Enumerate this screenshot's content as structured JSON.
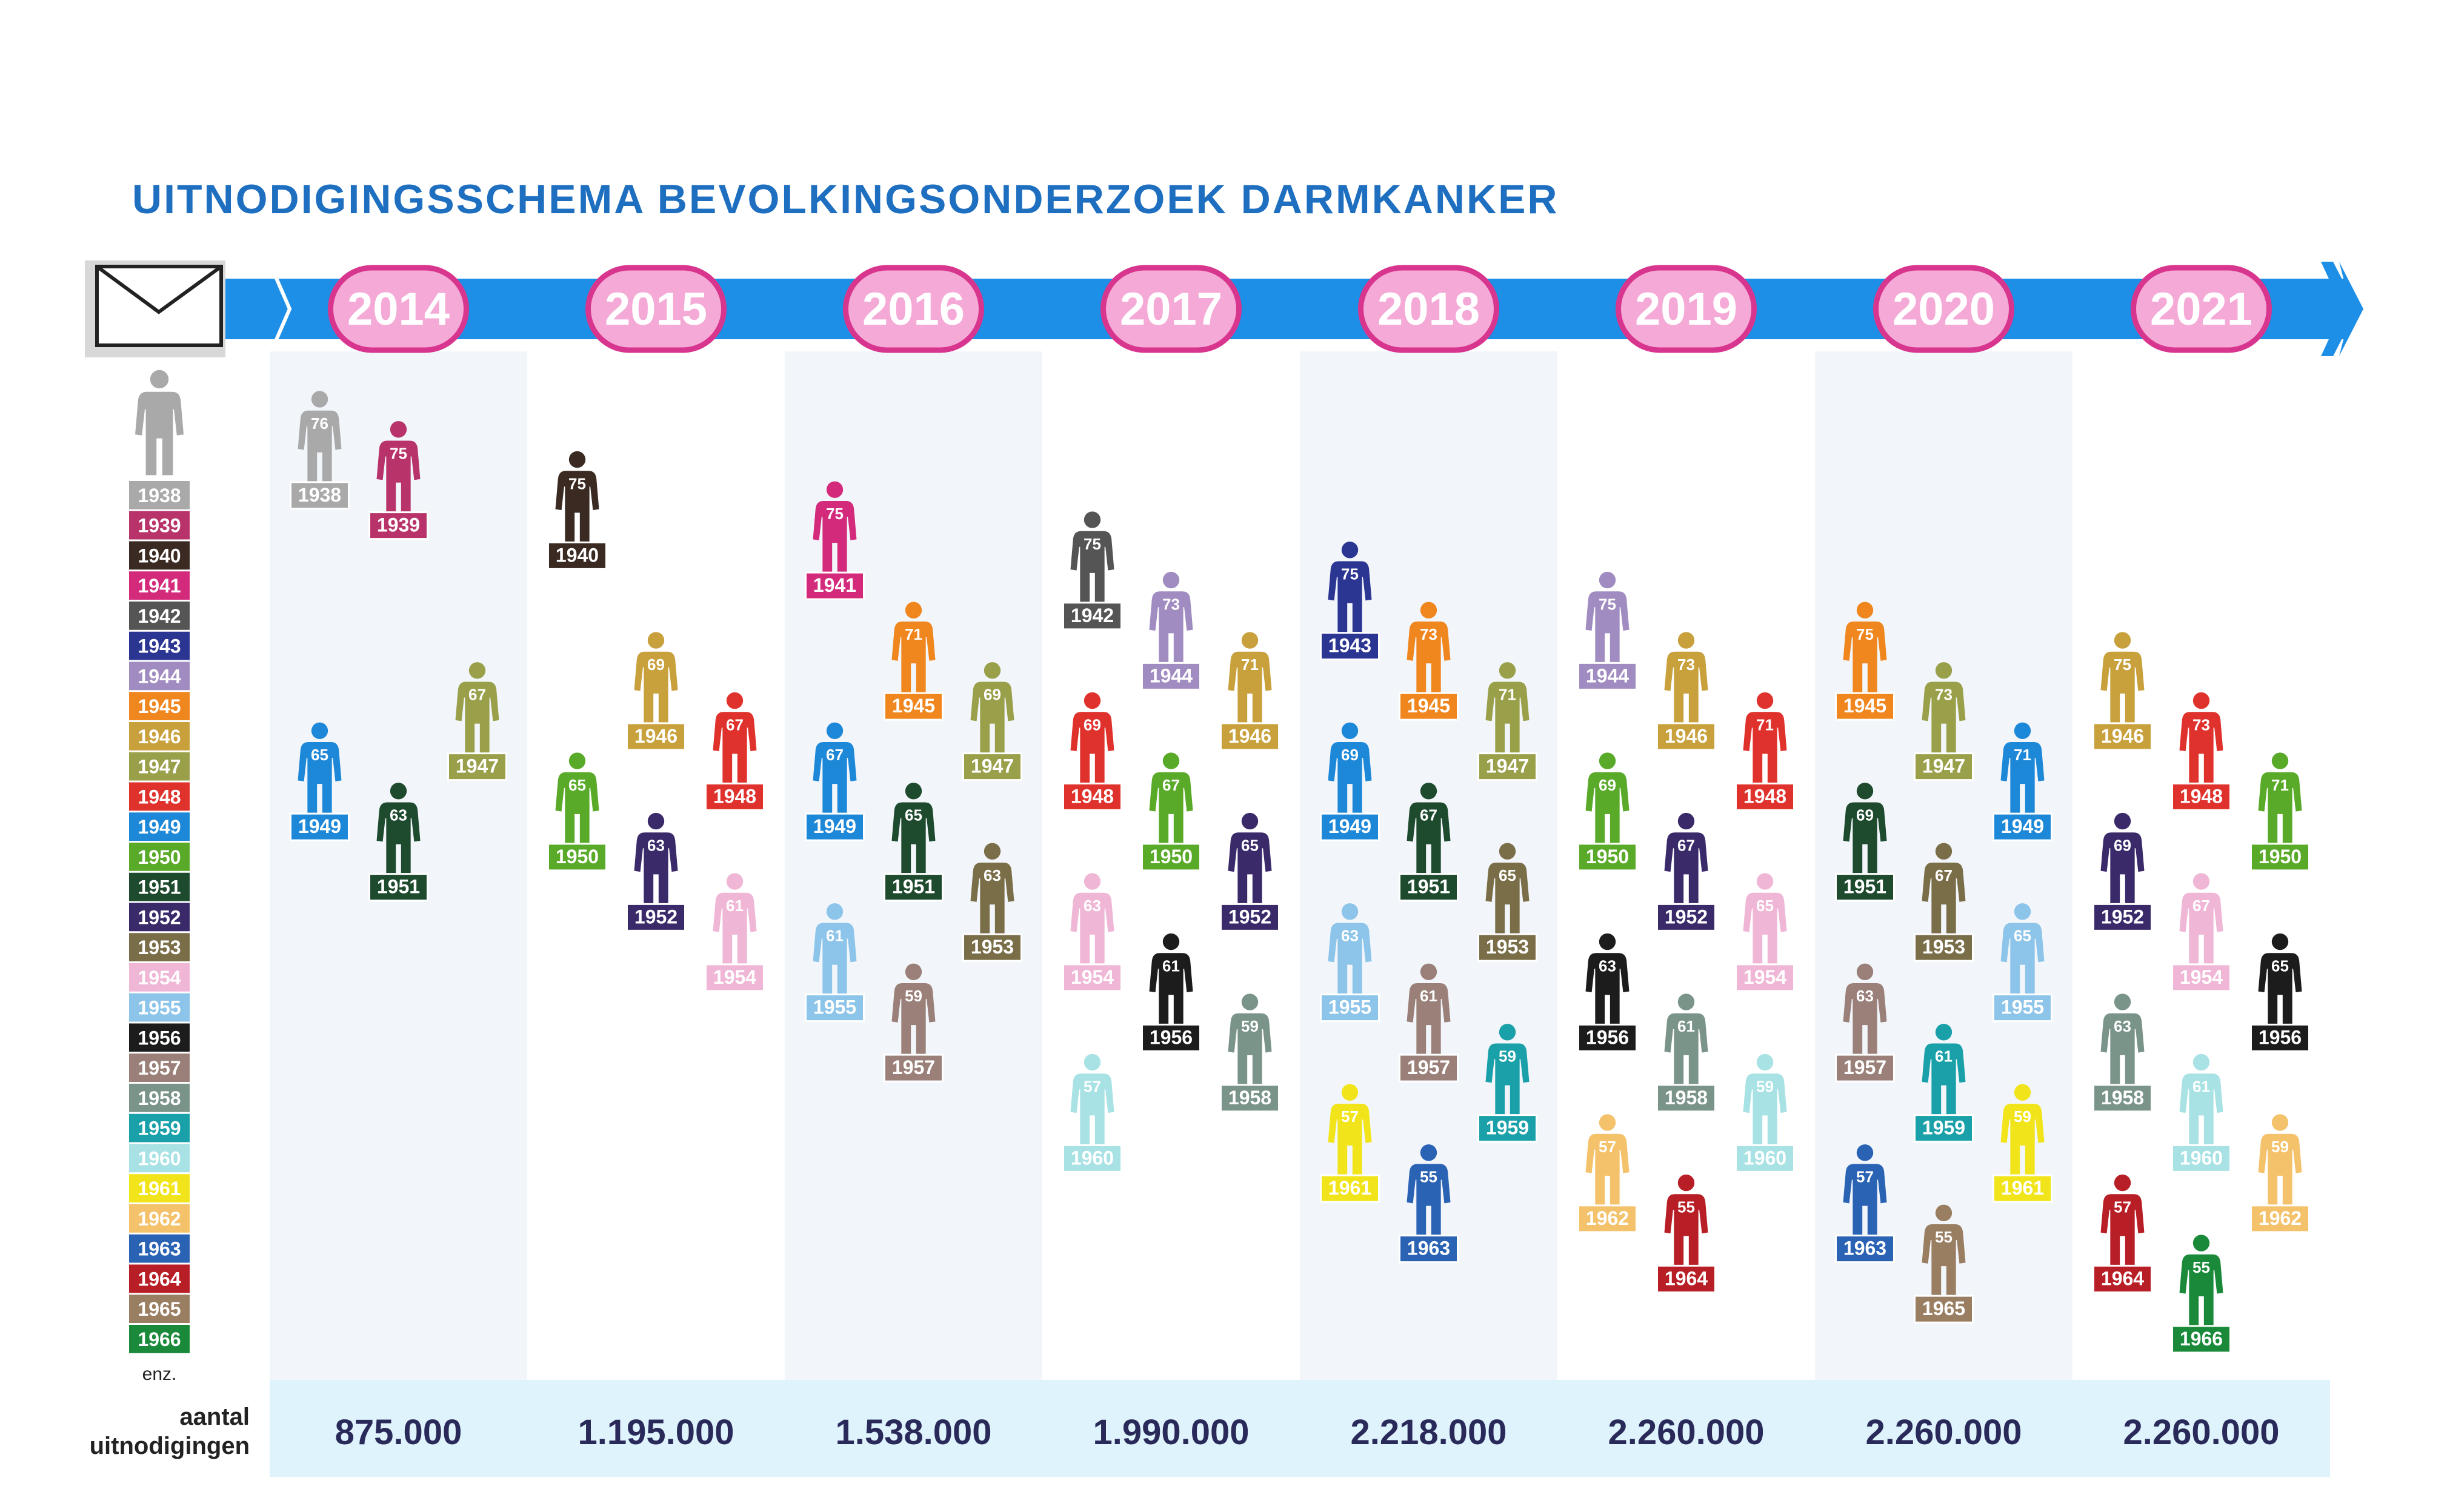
{
  "title": "UITNODIGINGSSCHEMA BEVOLKINGSONDERZOEK DARMKANKER",
  "legend_more": "enz.",
  "totals_label_line1": "aantal",
  "totals_label_line2": "uitnodigingen",
  "colors": {
    "arrow": "#1e8fe6",
    "year_badge_fill": "#f4a9d6",
    "year_badge_border": "#d8358e",
    "column_shade": "#f2f6fb",
    "totals_band": "#def3fb",
    "title": "#1e6fc0"
  },
  "chart_data": {
    "type": "pictogram-schedule",
    "title": "UITNODIGINGSSCHEMA BEVOLKINGSONDERZOEK DARMKANKER",
    "years": [
      "2014",
      "2015",
      "2016",
      "2017",
      "2018",
      "2019",
      "2020",
      "2021"
    ],
    "invitations": [
      "875.000",
      "1.195.000",
      "1.538.000",
      "1.990.000",
      "2.218.000",
      "2.260.000",
      "2.260.000",
      "2.260.000"
    ],
    "birth_years": [
      {
        "year": "1938",
        "color": "#a9a9a9"
      },
      {
        "year": "1939",
        "color": "#b8336a"
      },
      {
        "year": "1940",
        "color": "#3a2a22"
      },
      {
        "year": "1941",
        "color": "#d42a7c"
      },
      {
        "year": "1942",
        "color": "#555555"
      },
      {
        "year": "1943",
        "color": "#2b3592"
      },
      {
        "year": "1944",
        "color": "#a08cc0"
      },
      {
        "year": "1945",
        "color": "#f0861e"
      },
      {
        "year": "1946",
        "color": "#c8a03c"
      },
      {
        "year": "1947",
        "color": "#9aa04a"
      },
      {
        "year": "1948",
        "color": "#e0322c"
      },
      {
        "year": "1949",
        "color": "#1e88d8"
      },
      {
        "year": "1950",
        "color": "#5aaa2a"
      },
      {
        "year": "1951",
        "color": "#1e4a2e"
      },
      {
        "year": "1952",
        "color": "#3a2a6a"
      },
      {
        "year": "1953",
        "color": "#7a6e48"
      },
      {
        "year": "1954",
        "color": "#f0b6d6"
      },
      {
        "year": "1955",
        "color": "#8cc4ea"
      },
      {
        "year": "1956",
        "color": "#1c1c1c"
      },
      {
        "year": "1957",
        "color": "#9a8078"
      },
      {
        "year": "1958",
        "color": "#7a948a"
      },
      {
        "year": "1959",
        "color": "#1aa0a8"
      },
      {
        "year": "1960",
        "color": "#a8e2e4"
      },
      {
        "year": "1961",
        "color": "#f2e41a"
      },
      {
        "year": "1962",
        "color": "#f4c26a"
      },
      {
        "year": "1963",
        "color": "#2a62b4"
      },
      {
        "year": "1964",
        "color": "#b81e26"
      },
      {
        "year": "1965",
        "color": "#9a7e62"
      },
      {
        "year": "1966",
        "color": "#1a8a3a"
      }
    ],
    "invitations_by_year": [
      {
        "year": "2014",
        "people": [
          {
            "birth": "1938",
            "age": "76"
          },
          {
            "birth": "1939",
            "age": "75"
          },
          {
            "birth": "1947",
            "age": "67"
          },
          {
            "birth": "1949",
            "age": "65"
          },
          {
            "birth": "1951",
            "age": "63"
          }
        ]
      },
      {
        "year": "2015",
        "people": [
          {
            "birth": "1940",
            "age": "75"
          },
          {
            "birth": "1946",
            "age": "69"
          },
          {
            "birth": "1948",
            "age": "67"
          },
          {
            "birth": "1950",
            "age": "65"
          },
          {
            "birth": "1952",
            "age": "63"
          },
          {
            "birth": "1954",
            "age": "61"
          }
        ]
      },
      {
        "year": "2016",
        "people": [
          {
            "birth": "1941",
            "age": "75"
          },
          {
            "birth": "1945",
            "age": "71"
          },
          {
            "birth": "1947",
            "age": "69"
          },
          {
            "birth": "1949",
            "age": "67"
          },
          {
            "birth": "1951",
            "age": "65"
          },
          {
            "birth": "1953",
            "age": "63"
          },
          {
            "birth": "1955",
            "age": "61"
          },
          {
            "birth": "1957",
            "age": "59"
          }
        ]
      },
      {
        "year": "2017",
        "people": [
          {
            "birth": "1942",
            "age": "75"
          },
          {
            "birth": "1944",
            "age": "73"
          },
          {
            "birth": "1946",
            "age": "71"
          },
          {
            "birth": "1948",
            "age": "69"
          },
          {
            "birth": "1950",
            "age": "67"
          },
          {
            "birth": "1952",
            "age": "65"
          },
          {
            "birth": "1954",
            "age": "63"
          },
          {
            "birth": "1956",
            "age": "61"
          },
          {
            "birth": "1958",
            "age": "59"
          },
          {
            "birth": "1960",
            "age": "57"
          }
        ]
      },
      {
        "year": "2018",
        "people": [
          {
            "birth": "1943",
            "age": "75"
          },
          {
            "birth": "1945",
            "age": "73"
          },
          {
            "birth": "1947",
            "age": "71"
          },
          {
            "birth": "1949",
            "age": "69"
          },
          {
            "birth": "1951",
            "age": "67"
          },
          {
            "birth": "1953",
            "age": "65"
          },
          {
            "birth": "1955",
            "age": "63"
          },
          {
            "birth": "1957",
            "age": "61"
          },
          {
            "birth": "1959",
            "age": "59"
          },
          {
            "birth": "1961",
            "age": "57"
          },
          {
            "birth": "1963",
            "age": "55"
          }
        ]
      },
      {
        "year": "2019",
        "people": [
          {
            "birth": "1944",
            "age": "75"
          },
          {
            "birth": "1946",
            "age": "73"
          },
          {
            "birth": "1948",
            "age": "71"
          },
          {
            "birth": "1950",
            "age": "69"
          },
          {
            "birth": "1952",
            "age": "67"
          },
          {
            "birth": "1954",
            "age": "65"
          },
          {
            "birth": "1956",
            "age": "63"
          },
          {
            "birth": "1958",
            "age": "61"
          },
          {
            "birth": "1960",
            "age": "59"
          },
          {
            "birth": "1962",
            "age": "57"
          },
          {
            "birth": "1964",
            "age": "55"
          }
        ]
      },
      {
        "year": "2020",
        "people": [
          {
            "birth": "1945",
            "age": "75"
          },
          {
            "birth": "1947",
            "age": "73"
          },
          {
            "birth": "1949",
            "age": "71"
          },
          {
            "birth": "1951",
            "age": "69"
          },
          {
            "birth": "1953",
            "age": "67"
          },
          {
            "birth": "1955",
            "age": "65"
          },
          {
            "birth": "1957",
            "age": "63"
          },
          {
            "birth": "1959",
            "age": "61"
          },
          {
            "birth": "1961",
            "age": "59"
          },
          {
            "birth": "1963",
            "age": "57"
          },
          {
            "birth": "1965",
            "age": "55"
          }
        ]
      },
      {
        "year": "2021",
        "people": [
          {
            "birth": "1946",
            "age": "75"
          },
          {
            "birth": "1948",
            "age": "73"
          },
          {
            "birth": "1950",
            "age": "71"
          },
          {
            "birth": "1952",
            "age": "69"
          },
          {
            "birth": "1954",
            "age": "67"
          },
          {
            "birth": "1956",
            "age": "65"
          },
          {
            "birth": "1958",
            "age": "63"
          },
          {
            "birth": "1960",
            "age": "61"
          },
          {
            "birth": "1962",
            "age": "59"
          },
          {
            "birth": "1964",
            "age": "57"
          },
          {
            "birth": "1966",
            "age": "55"
          }
        ]
      }
    ]
  }
}
